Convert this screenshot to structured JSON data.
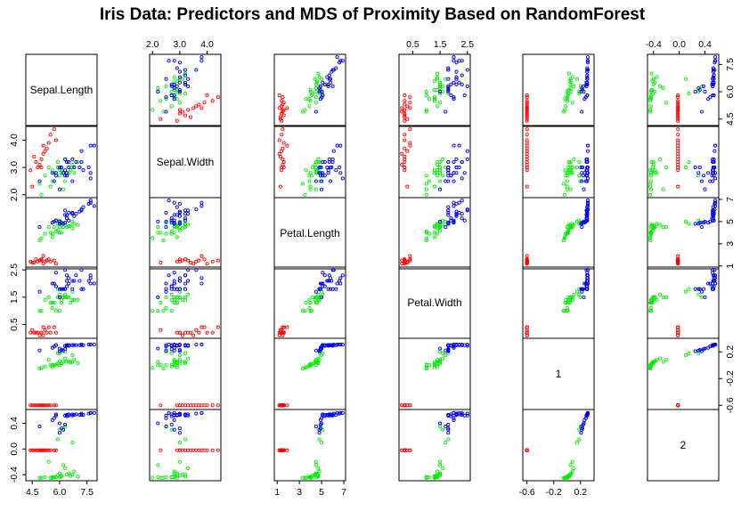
{
  "chart_data": {
    "type": "scatter",
    "subtype": "pairs-matrix",
    "title": "Iris Data: Predictors and MDS of Proximity Based on RandomForest",
    "variables": [
      "Sepal.Length",
      "Sepal.Width",
      "Petal.Length",
      "Petal.Width",
      "1",
      "2"
    ],
    "ranges": [
      [
        4.3,
        7.9
      ],
      [
        2.0,
        4.4
      ],
      [
        1.0,
        6.9
      ],
      [
        0.1,
        2.5
      ],
      [
        -0.62,
        0.36
      ],
      [
        -0.45,
        0.57
      ]
    ],
    "ticks": [
      {
        "values": [
          4.5,
          6.0,
          7.5
        ],
        "labels": [
          "4.5",
          "6.0",
          "7.5"
        ]
      },
      {
        "values": [
          2.0,
          3.0,
          4.0
        ],
        "labels": [
          "2.0",
          "3.0",
          "4.0"
        ]
      },
      {
        "values": [
          1,
          3,
          5,
          7
        ],
        "labels": [
          "1",
          "3",
          "5",
          "7"
        ]
      },
      {
        "values": [
          0.5,
          1.5,
          2.5
        ],
        "labels": [
          "0.5",
          "1.5",
          "2.5"
        ]
      },
      {
        "values": [
          -0.6,
          -0.2,
          0.2
        ],
        "labels": [
          "-0.6",
          "-0.2",
          "0.2"
        ]
      },
      {
        "values": [
          -0.4,
          0.0,
          0.4
        ],
        "labels": [
          "-0.4",
          "0.0",
          "0.4"
        ]
      }
    ],
    "series": [
      {
        "color": "#ff0000",
        "points": [
          [
            4.6,
            3.4,
            1.3,
            0.2,
            -0.6,
            -0.02
          ],
          [
            4.8,
            3.0,
            1.4,
            0.2,
            -0.6,
            -0.02
          ],
          [
            5.0,
            3.3,
            1.5,
            0.2,
            -0.6,
            -0.02
          ],
          [
            5.2,
            3.6,
            1.4,
            0.3,
            -0.6,
            -0.02
          ],
          [
            5.4,
            3.9,
            1.6,
            0.4,
            -0.6,
            -0.02
          ],
          [
            5.1,
            3.5,
            1.2,
            0.1,
            -0.6,
            -0.02
          ],
          [
            4.4,
            2.9,
            1.4,
            0.2,
            -0.6,
            -0.02
          ],
          [
            5.7,
            4.4,
            1.5,
            0.4,
            -0.6,
            -0.02
          ],
          [
            5.0,
            3.0,
            1.6,
            0.2,
            -0.6,
            -0.02
          ],
          [
            4.9,
            3.1,
            1.5,
            0.1,
            -0.6,
            -0.02
          ],
          [
            5.3,
            3.7,
            1.5,
            0.2,
            -0.6,
            -0.02
          ],
          [
            4.5,
            2.3,
            1.3,
            0.3,
            -0.6,
            -0.02
          ],
          [
            5.5,
            4.2,
            1.4,
            0.2,
            -0.6,
            -0.02
          ],
          [
            5.8,
            4.0,
            1.2,
            0.2,
            -0.6,
            -0.02
          ],
          [
            4.7,
            3.2,
            1.6,
            0.2,
            -0.6,
            -0.02
          ],
          [
            5.1,
            3.8,
            1.9,
            0.4,
            -0.6,
            -0.02
          ]
        ]
      },
      {
        "color": "#00ee00",
        "points": [
          [
            7.0,
            3.2,
            4.7,
            1.4,
            0.03,
            -0.43
          ],
          [
            6.4,
            3.2,
            4.5,
            1.5,
            0.05,
            -0.4
          ],
          [
            5.5,
            2.3,
            4.0,
            1.3,
            0.0,
            -0.45
          ],
          [
            6.5,
            2.8,
            4.6,
            1.5,
            0.06,
            -0.38
          ],
          [
            5.7,
            2.8,
            4.5,
            1.3,
            0.0,
            -0.44
          ],
          [
            6.3,
            3.3,
            4.7,
            1.6,
            0.1,
            -0.3
          ],
          [
            4.9,
            2.4,
            3.3,
            1.0,
            -0.05,
            -0.45
          ],
          [
            6.6,
            2.9,
            4.6,
            1.3,
            0.04,
            -0.42
          ],
          [
            5.2,
            2.7,
            3.9,
            1.4,
            -0.02,
            -0.44
          ],
          [
            5.0,
            2.0,
            3.5,
            1.0,
            -0.04,
            -0.45
          ],
          [
            5.9,
            3.0,
            4.2,
            1.5,
            0.02,
            -0.41
          ],
          [
            6.0,
            2.2,
            4.0,
            1.0,
            0.0,
            -0.44
          ],
          [
            6.1,
            2.9,
            4.7,
            1.4,
            0.03,
            -0.42
          ],
          [
            5.6,
            2.9,
            3.6,
            1.3,
            -0.03,
            -0.45
          ],
          [
            6.7,
            3.1,
            4.4,
            1.4,
            0.05,
            -0.4
          ],
          [
            5.8,
            2.7,
            4.1,
            1.0,
            0.01,
            -0.44
          ],
          [
            6.2,
            2.2,
            4.5,
            1.5,
            0.05,
            -0.25
          ],
          [
            5.6,
            2.5,
            3.9,
            1.1,
            0.0,
            -0.44
          ],
          [
            5.9,
            3.2,
            4.8,
            1.8,
            0.18,
            0.15
          ],
          [
            6.1,
            2.8,
            4.0,
            1.3,
            0.02,
            -0.43
          ],
          [
            6.3,
            2.5,
            4.9,
            1.5,
            0.2,
            0.35
          ],
          [
            6.8,
            2.8,
            4.8,
            1.4,
            0.08,
            -0.35
          ],
          [
            6.0,
            2.9,
            4.5,
            1.5,
            0.06,
            -0.38
          ],
          [
            5.4,
            3.0,
            4.5,
            1.5,
            0.08,
            -0.2
          ],
          [
            6.7,
            3.0,
            5.0,
            1.7,
            0.15,
            0.1
          ],
          [
            6.0,
            2.7,
            5.1,
            1.6,
            0.18,
            0.3
          ]
        ]
      },
      {
        "color": "#0000ee",
        "points": [
          [
            6.3,
            3.3,
            6.0,
            2.5,
            0.29,
            0.52
          ],
          [
            5.8,
            2.7,
            5.1,
            1.9,
            0.3,
            0.54
          ],
          [
            7.1,
            3.0,
            5.9,
            2.1,
            0.3,
            0.53
          ],
          [
            6.3,
            2.9,
            5.6,
            1.8,
            0.29,
            0.52
          ],
          [
            6.5,
            3.0,
            5.8,
            2.2,
            0.3,
            0.54
          ],
          [
            7.6,
            3.0,
            6.6,
            2.1,
            0.31,
            0.55
          ],
          [
            4.9,
            2.5,
            4.5,
            1.7,
            0.22,
            0.35
          ],
          [
            7.3,
            2.9,
            6.3,
            1.8,
            0.3,
            0.53
          ],
          [
            6.7,
            2.5,
            5.8,
            1.8,
            0.3,
            0.52
          ],
          [
            7.2,
            3.6,
            6.1,
            2.5,
            0.31,
            0.55
          ],
          [
            6.5,
            3.2,
            5.1,
            2.0,
            0.29,
            0.52
          ],
          [
            6.4,
            2.7,
            5.3,
            1.9,
            0.29,
            0.51
          ],
          [
            6.8,
            3.0,
            5.5,
            2.1,
            0.3,
            0.53
          ],
          [
            5.7,
            2.5,
            5.0,
            2.0,
            0.28,
            0.48
          ],
          [
            5.8,
            2.8,
            5.1,
            2.4,
            0.3,
            0.52
          ],
          [
            6.4,
            3.2,
            5.3,
            2.3,
            0.3,
            0.53
          ],
          [
            7.7,
            3.8,
            6.7,
            2.2,
            0.31,
            0.56
          ],
          [
            7.7,
            2.6,
            6.9,
            2.3,
            0.31,
            0.56
          ],
          [
            6.0,
            2.2,
            5.0,
            1.5,
            0.25,
            0.4
          ],
          [
            6.9,
            3.2,
            5.7,
            2.3,
            0.3,
            0.54
          ],
          [
            5.6,
            2.8,
            4.9,
            2.0,
            0.26,
            0.45
          ],
          [
            7.7,
            2.8,
            6.7,
            2.0,
            0.31,
            0.56
          ],
          [
            6.3,
            2.7,
            4.9,
            1.8,
            0.24,
            0.38
          ],
          [
            6.7,
            3.3,
            5.7,
            2.1,
            0.3,
            0.54
          ],
          [
            7.2,
            3.2,
            6.0,
            1.8,
            0.3,
            0.53
          ],
          [
            6.2,
            2.8,
            4.8,
            1.8,
            0.22,
            0.3
          ],
          [
            6.1,
            3.0,
            4.9,
            1.8,
            0.23,
            0.32
          ],
          [
            6.4,
            2.8,
            5.6,
            2.1,
            0.3,
            0.53
          ],
          [
            7.9,
            3.8,
            6.4,
            2.0,
            0.31,
            0.56
          ],
          [
            6.0,
            3.0,
            4.8,
            1.8,
            0.21,
            0.25
          ]
        ]
      }
    ]
  }
}
